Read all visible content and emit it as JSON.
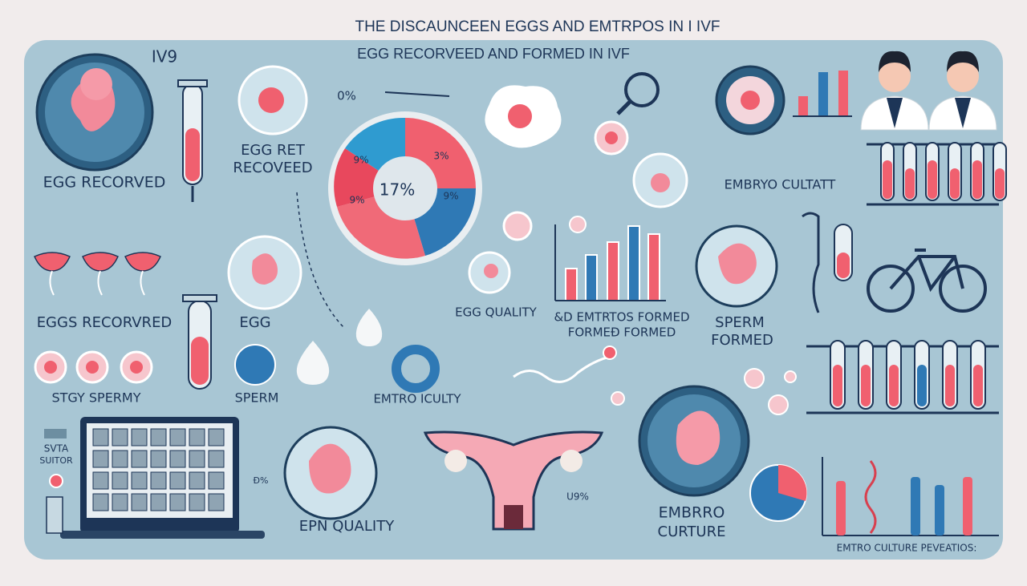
{
  "header": {
    "title": "THE DISCAUNCEEN EGGS AND EMTRPOS IN I IVF",
    "subtitle": "EGG RECORVEED AND FORMED IN IVF"
  },
  "labels": {
    "iv9": "IV9",
    "egg_recorved": "EGG RECORVED",
    "egg_ret": "EGG RET",
    "recoveed": "RECOVEED",
    "percent_top": "0%",
    "pie_center": "17%",
    "pie_a": "9%",
    "pie_b": "3%",
    "pie_c": "9%",
    "pie_d": "9%",
    "embryo_cultatt": "EMBRYO CULTATT",
    "eggs_recorvred": "EGGS RECORVRED",
    "egg": "EGG",
    "stgy_spermy": "STGY SPERMY",
    "sperm": "SPERM",
    "emtro_iculty": "EMTRO ICULTY",
    "egg_quality": "EGG QUALITY",
    "emtrtos_formed": "&D EMTRTOS FORMED",
    "formed_formed": "FORMEÐ FORMED",
    "sperm_formed_1": "SPERM",
    "sperm_formed_2": "FORMED",
    "svta": "SVTA",
    "suitor": "SUITOR",
    "small_percent": "Ð%",
    "epn_quality": "EPN QUALITY",
    "u9": "U9%",
    "embrro": "EMBRRO",
    "curture": "CURTURE",
    "emtro_culture": "EMTRO CULTURE PEVEATIOS:"
  }
}
